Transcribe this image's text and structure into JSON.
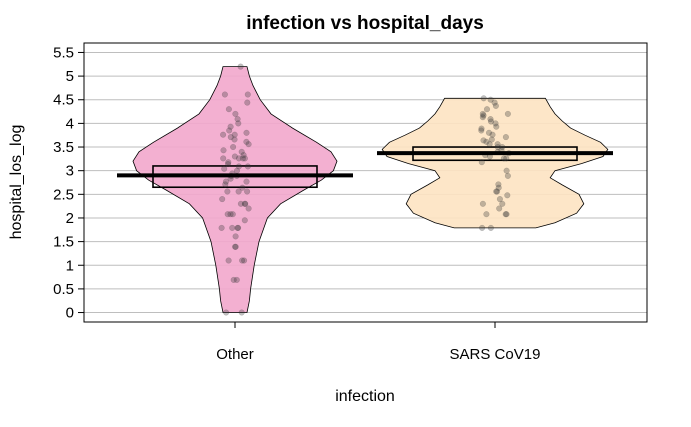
{
  "chart_data": {
    "type": "pirate",
    "title": "infection vs hospital_days",
    "xlabel": "infection",
    "ylabel": "hospital_los_log",
    "ylim": [
      -0.2,
      5.7
    ],
    "yticks": [
      0,
      0.5,
      1,
      1.5,
      2,
      2.5,
      3,
      3.5,
      4,
      4.5,
      5,
      5.5
    ],
    "ytick_labels": [
      "0",
      "0.5",
      "1",
      "1.5",
      "2",
      "2.5",
      "3",
      "3.5",
      "4",
      "4.5",
      "5",
      "5.5"
    ],
    "grid": true,
    "categories": [
      "Other",
      "SARS CoV19"
    ],
    "groups": [
      {
        "category": "Other",
        "color": "#f2a7cc",
        "mean": 2.9,
        "hdi": [
          2.65,
          3.1
        ],
        "range": [
          0,
          5.2
        ],
        "density_y": [
          0,
          0.25,
          0.5,
          1.0,
          1.5,
          2.0,
          2.3,
          2.6,
          2.8,
          3.0,
          3.2,
          3.4,
          3.6,
          3.9,
          4.2,
          4.5,
          4.8,
          5.0,
          5.2
        ],
        "density_w": [
          0.1,
          0.12,
          0.13,
          0.16,
          0.2,
          0.27,
          0.38,
          0.58,
          0.72,
          0.82,
          0.85,
          0.8,
          0.68,
          0.48,
          0.3,
          0.21,
          0.15,
          0.12,
          0.1
        ],
        "points": [
          0,
          0,
          0.69,
          0.69,
          1.1,
          1.1,
          1.1,
          1.39,
          1.39,
          1.61,
          1.79,
          1.79,
          1.79,
          1.79,
          1.95,
          2.08,
          2.08,
          2.08,
          2.2,
          2.3,
          2.3,
          2.3,
          2.4,
          2.56,
          2.56,
          2.56,
          2.64,
          2.71,
          2.77,
          2.77,
          2.83,
          2.89,
          2.89,
          2.94,
          3.0,
          3.04,
          3.09,
          3.09,
          3.14,
          3.18,
          3.26,
          3.26,
          3.26,
          3.26,
          3.3,
          3.33,
          3.4,
          3.43,
          3.5,
          3.56,
          3.61,
          3.66,
          3.71,
          3.76,
          3.76,
          3.8,
          3.85,
          3.93,
          4.0,
          4.09,
          4.2,
          4.3,
          4.44,
          4.61,
          4.61,
          5.2
        ]
      },
      {
        "category": "SARS CoV19",
        "color": "#fde3c2",
        "mean": 3.37,
        "hdi": [
          3.22,
          3.5
        ],
        "range": [
          1.79,
          4.53
        ],
        "density_y": [
          1.79,
          1.9,
          2.1,
          2.3,
          2.5,
          2.7,
          2.85,
          3.0,
          3.15,
          3.3,
          3.45,
          3.6,
          3.75,
          3.9,
          4.05,
          4.2,
          4.35,
          4.53
        ],
        "density_w": [
          0.34,
          0.5,
          0.68,
          0.74,
          0.7,
          0.56,
          0.46,
          0.5,
          0.72,
          0.9,
          0.94,
          0.88,
          0.75,
          0.63,
          0.56,
          0.5,
          0.46,
          0.42
        ],
        "points": [
          1.79,
          1.79,
          2.08,
          2.08,
          2.08,
          2.2,
          2.3,
          2.3,
          2.4,
          2.48,
          2.56,
          2.56,
          2.64,
          2.71,
          2.89,
          3.0,
          3.18,
          3.26,
          3.26,
          3.3,
          3.33,
          3.37,
          3.4,
          3.43,
          3.5,
          3.5,
          3.56,
          3.56,
          3.61,
          3.64,
          3.66,
          3.71,
          3.76,
          3.8,
          3.85,
          3.89,
          3.93,
          4.0,
          4.04,
          4.09,
          4.13,
          4.17,
          4.2,
          4.2,
          4.3,
          4.37,
          4.44,
          4.5,
          4.53
        ]
      }
    ]
  }
}
